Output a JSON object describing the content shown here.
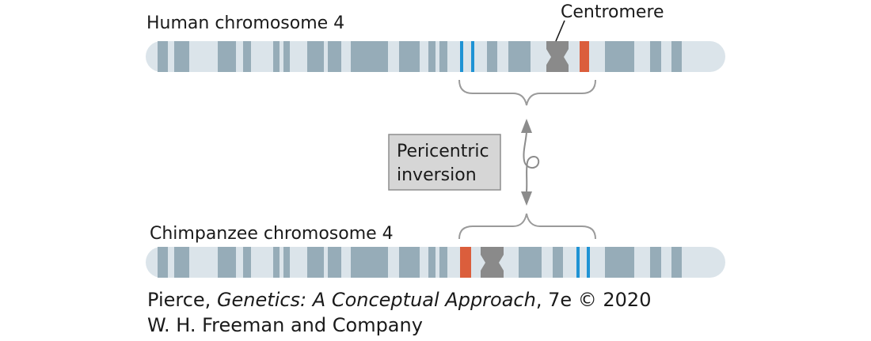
{
  "labels": {
    "human": "Human chromosome 4",
    "chimp": "Chimpanzee chromosome 4",
    "centromere": "Centromere",
    "inversion_line1": "Pericentric",
    "inversion_line2": "inversion"
  },
  "credit": {
    "line1_prefix": "Pierce, ",
    "line1_title": "Genetics: A Conceptual Approach",
    "line1_suffix": ", 7e © 2020",
    "line2": "W. H. Freeman and Company"
  },
  "colors": {
    "chromosome_body": "#dbe4ea",
    "band_gray": "#96acb8",
    "band_blue": "#1f93d4",
    "band_red": "#db5e3c",
    "centromere": "#8a8a8a",
    "bracket": "#9a9a9a",
    "label_box": "#d6d6d6"
  }
}
